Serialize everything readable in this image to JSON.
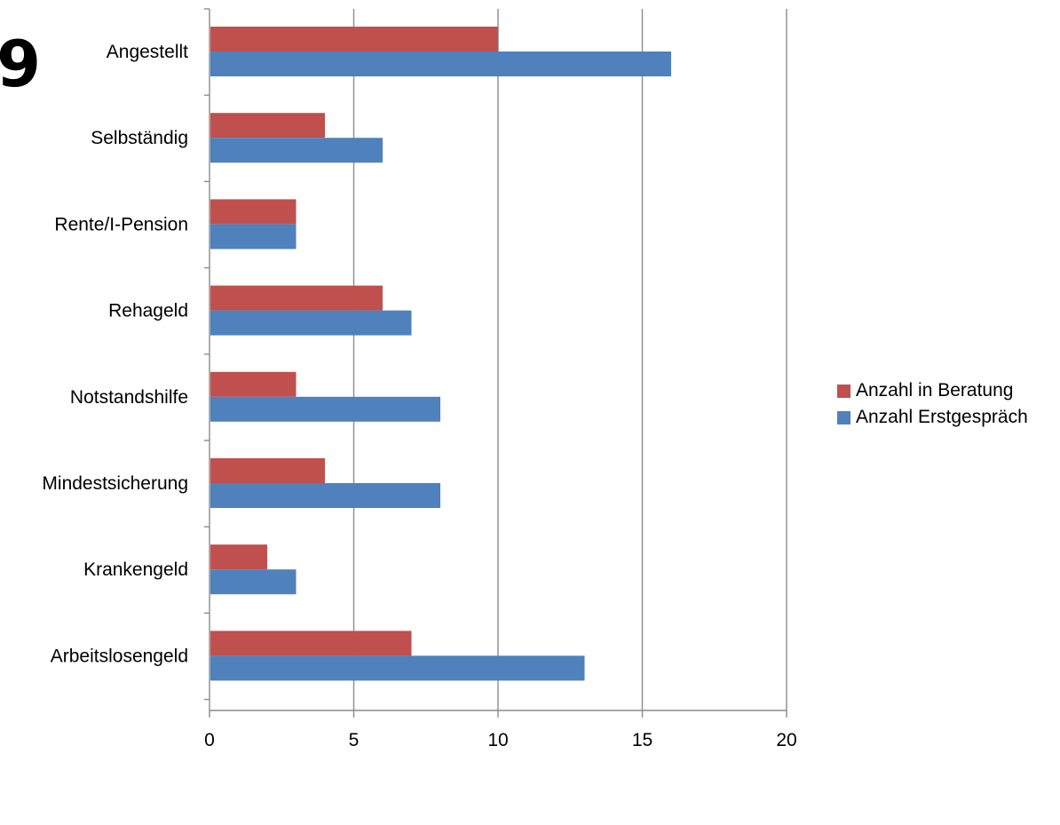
{
  "page": {
    "number": "9"
  },
  "chart_data": {
    "type": "bar",
    "orientation": "horizontal",
    "categories": [
      "Angestellt",
      "Selbständig",
      "Rente/I-Pension",
      "Rehageld",
      "Notstandshilfe",
      "Mindestsicherung",
      "Krankengeld",
      "Arbeitslosengeld"
    ],
    "series": [
      {
        "name": "Anzahl in Beratung",
        "color": "#c0504d",
        "values": [
          10,
          4,
          3,
          6,
          3,
          4,
          2,
          7
        ]
      },
      {
        "name": "Anzahl Erstgespräch",
        "color": "#4f81bd",
        "values": [
          16,
          6,
          3,
          7,
          8,
          8,
          3,
          13
        ]
      }
    ],
    "xlim": [
      0,
      20
    ],
    "xticks": [
      "0",
      "5",
      "10",
      "15",
      "20"
    ],
    "gridlines": "vertical",
    "legend": "right"
  }
}
